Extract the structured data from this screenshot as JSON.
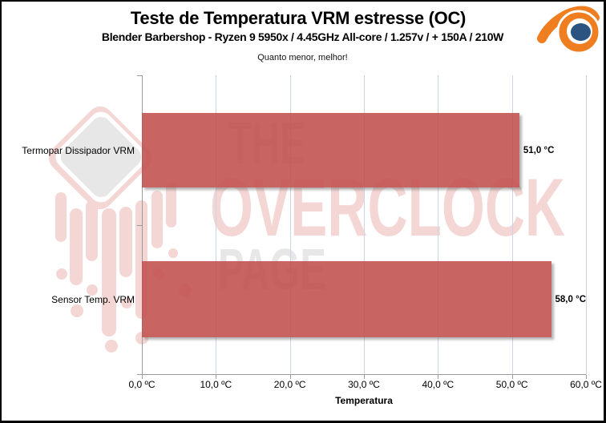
{
  "header": {
    "title": "Teste de Temperatura VRM estresse (OC)",
    "subtitle": "Blender Barbershop - Ryzen 9 5950x / 4.45GHz All-core / 1.257v / + 150A / 210W",
    "note": "Quanto menor, melhor!"
  },
  "watermark": {
    "line1": "THE",
    "line2": "OVERCLOCK",
    "line3": "PAGE",
    "pink": "#F4D7D5",
    "gray": "#E7E7E7"
  },
  "chart_data": {
    "type": "bar",
    "orientation": "horizontal",
    "title": "Teste de Temperatura VRM estresse (OC)",
    "subtitle": "Blender Barbershop - Ryzen 9 5950x / 4.45GHz All-core / 1.257v / + 150A / 210W",
    "annotation": "Quanto menor, melhor!",
    "categories": [
      "Termopar Dissipador VRM",
      "Sensor Temp. VRM"
    ],
    "values": [
      51.0,
      58.0
    ],
    "value_labels": [
      "51,0 °C",
      "58,0 °C"
    ],
    "xlabel": "Temperatura",
    "x_ticks": [
      "0,0 ºC",
      "10,0 ºC",
      "20,0 ºC",
      "30,0 ºC",
      "40,0 ºC",
      "50,0 ºC",
      "60,0 ºC"
    ],
    "xlim": [
      0,
      60
    ],
    "grid": true,
    "legend": false,
    "bar_color": "#C0504D",
    "gridline_color": "#C9D5E7"
  },
  "logo": {
    "name": "blender-logo",
    "orange": "#EE7E20",
    "blue": "#2B5580"
  }
}
